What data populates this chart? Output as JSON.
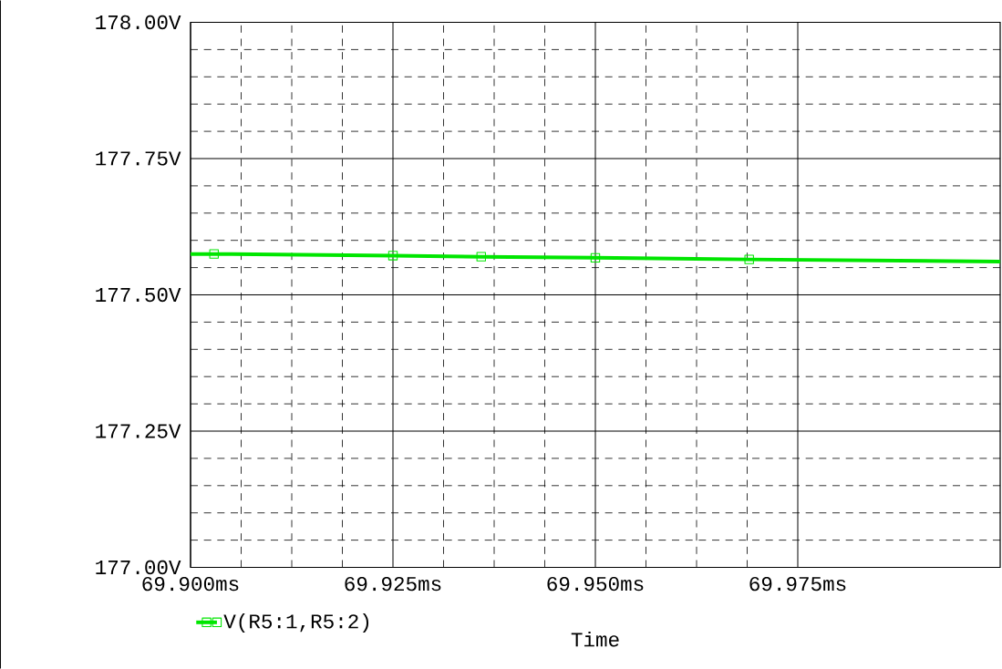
{
  "chart_data": {
    "type": "line",
    "xlabel": "Time",
    "x": [
      69.9,
      69.9029,
      69.925,
      69.9359,
      69.95,
      69.969,
      70.0
    ],
    "series": [
      {
        "name": "V(R5:1,R5:2)",
        "color": "#00e600",
        "values": [
          177.575,
          177.575,
          177.572,
          177.57,
          177.568,
          177.565,
          177.561
        ]
      }
    ],
    "xlim": [
      69.9,
      70.0
    ],
    "xticks": [
      {
        "value": 69.9,
        "label": "69.900ms"
      },
      {
        "value": 69.925,
        "label": "69.925ms"
      },
      {
        "value": 69.95,
        "label": "69.950ms"
      },
      {
        "value": 69.975,
        "label": "69.975ms"
      }
    ],
    "ylim": [
      177.0,
      178.0
    ],
    "yticks": [
      {
        "value": 177.0,
        "label": "177.00V"
      },
      {
        "value": 177.25,
        "label": "177.25V"
      },
      {
        "value": 177.5,
        "label": "177.50V"
      },
      {
        "value": 177.75,
        "label": "177.75V"
      },
      {
        "value": 178.0,
        "label": "178.00V"
      }
    ],
    "grid": true,
    "legend": "bottom left",
    "marker": "square",
    "line_style": "solid"
  }
}
